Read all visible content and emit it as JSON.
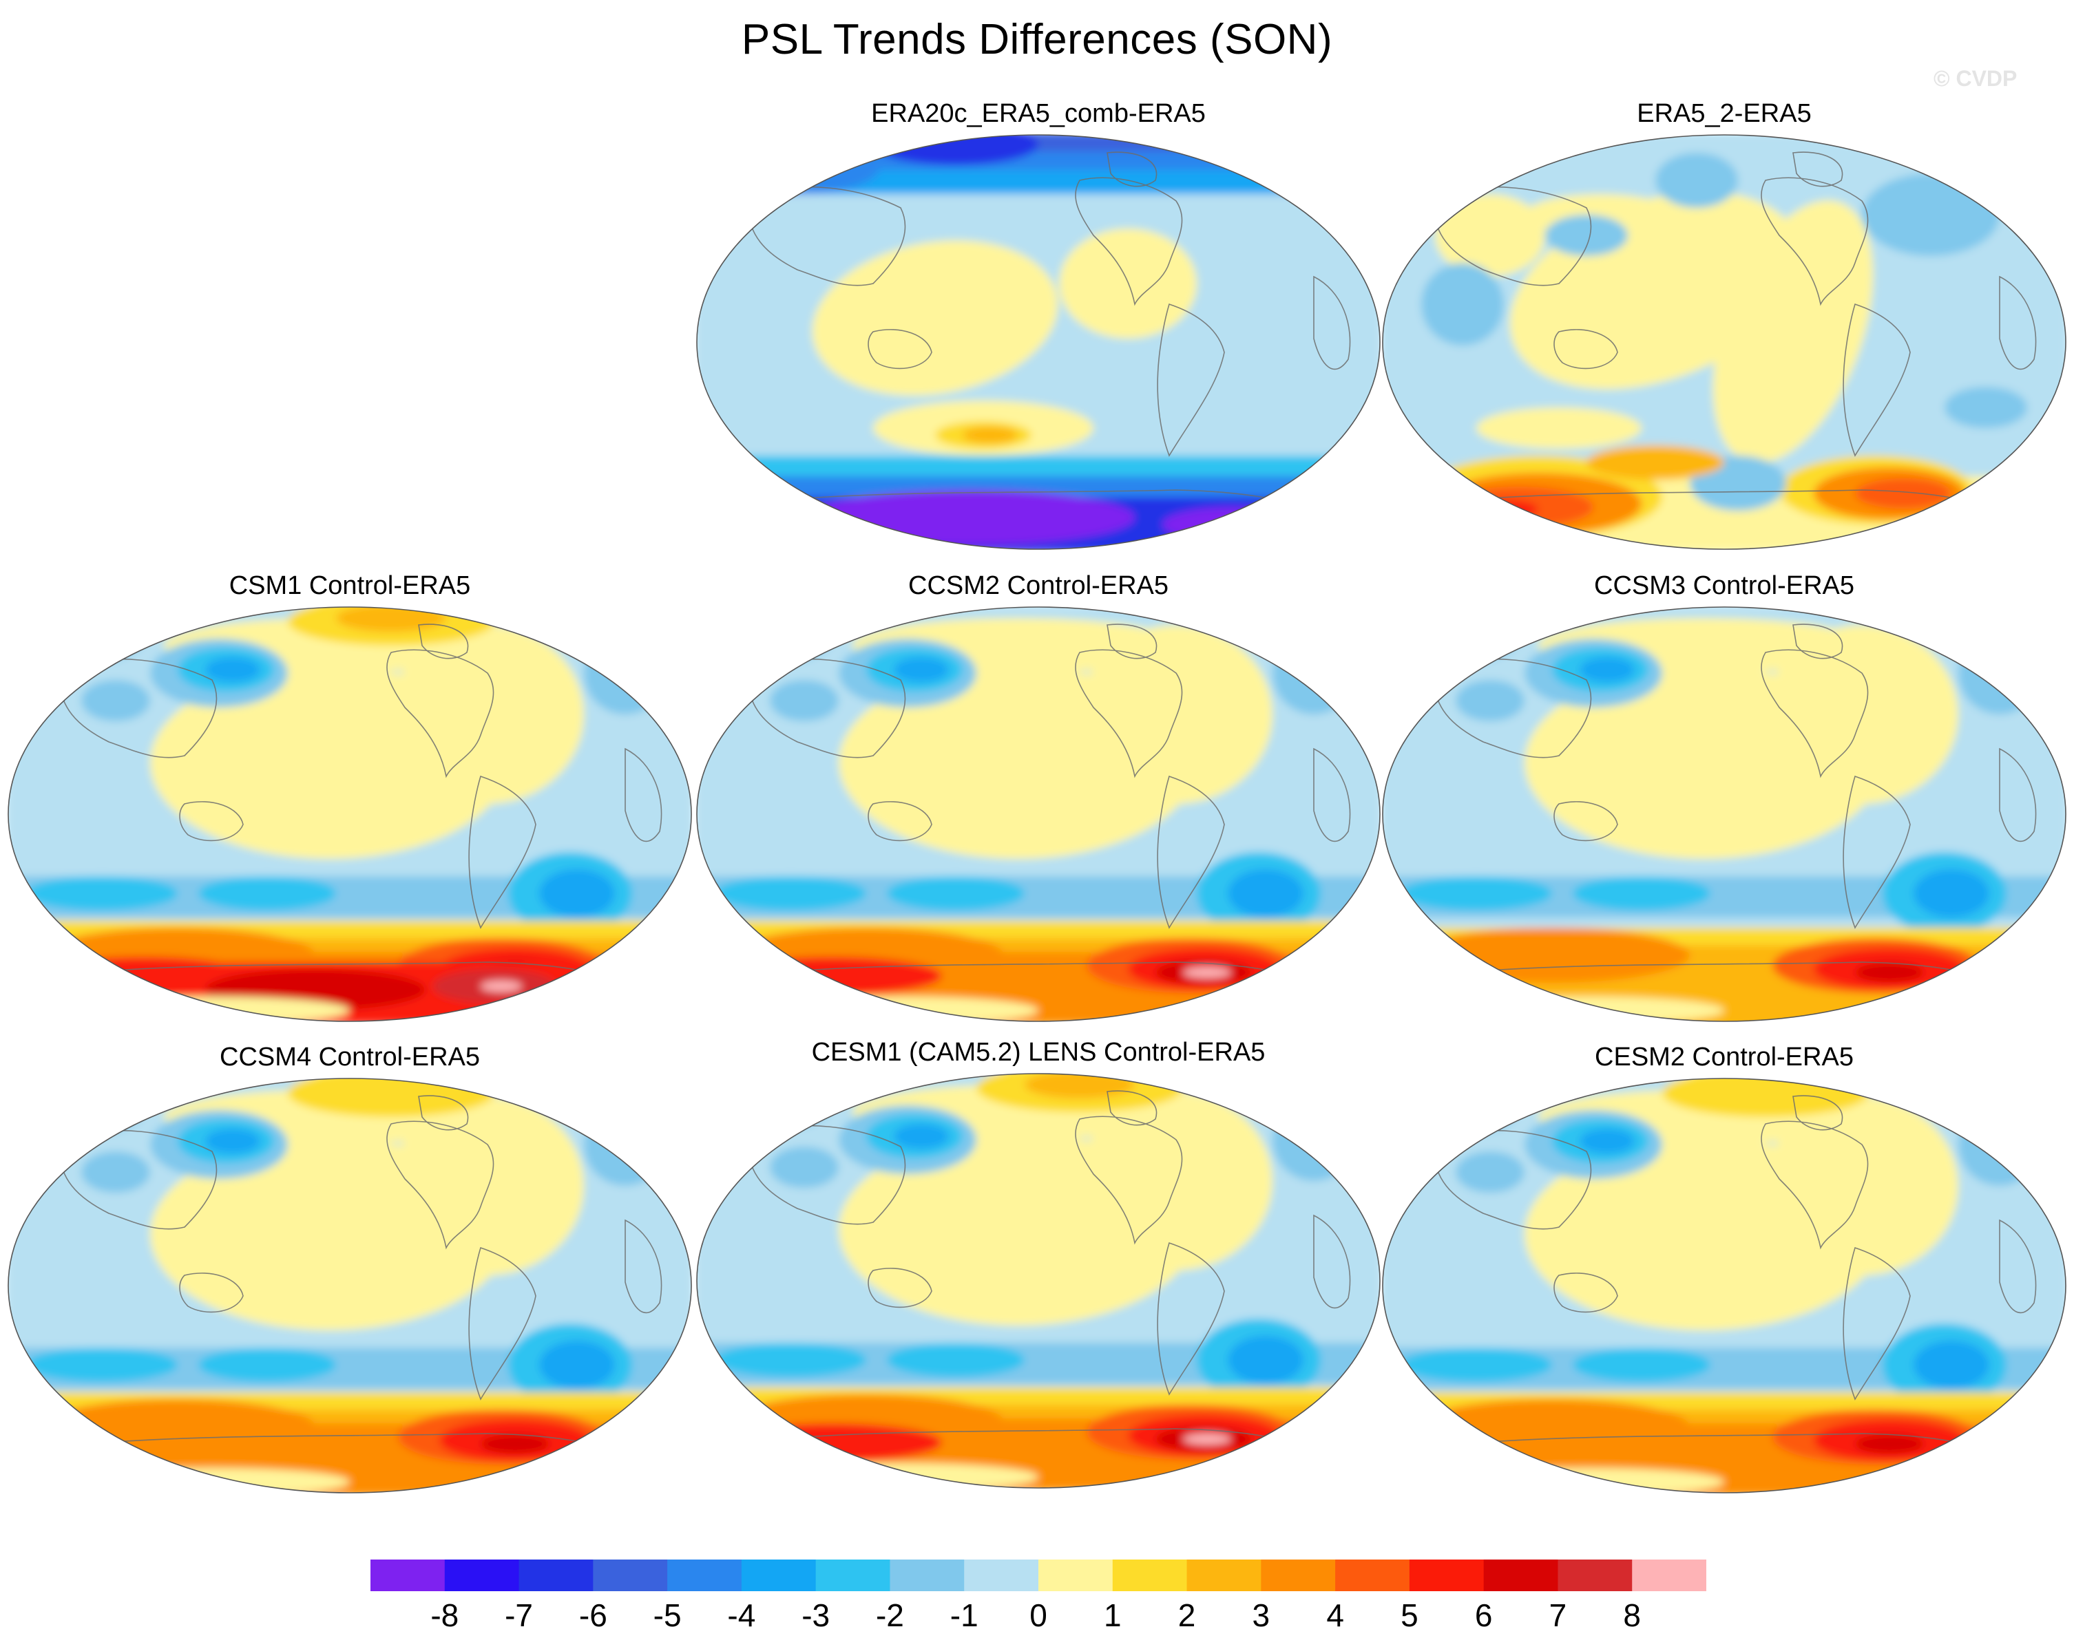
{
  "title": "PSL Trends Differences (SON)",
  "watermark": "© CVDP",
  "panels": [
    {
      "title": "ERA20c_ERA5_comb-ERA5",
      "style": "era20c"
    },
    {
      "title": "ERA5_2-ERA5",
      "style": "era5_2"
    },
    {
      "title": "CSM1 Control-ERA5",
      "style": "csm1"
    },
    {
      "title": "CCSM2 Control-ERA5",
      "style": "ccsm2"
    },
    {
      "title": "CCSM3 Control-ERA5",
      "style": "ccsm3"
    },
    {
      "title": "CCSM4 Control-ERA5",
      "style": "ccsm4"
    },
    {
      "title": "CESM1 (CAM5.2) LENS Control-ERA5",
      "style": "cesm1"
    },
    {
      "title": "CESM2 Control-ERA5",
      "style": "cesm2"
    }
  ],
  "colorbar": {
    "labels": [
      "-8",
      "-7",
      "-6",
      "-5",
      "-4",
      "-3",
      "-2",
      "-1",
      "0",
      "1",
      "2",
      "3",
      "4",
      "5",
      "6",
      "7",
      "8"
    ],
    "colors": [
      "#7e22f0",
      "#2a10f5",
      "#2233e6",
      "#3a62dd",
      "#2a86ee",
      "#13a6f4",
      "#2ec3f1",
      "#80c8ec",
      "#b7e0f2",
      "#fff59b",
      "#fddc2a",
      "#fdb60f",
      "#fd8c03",
      "#fd5a0d",
      "#fb1b08",
      "#d80404",
      "#d62a2d",
      "#feb3b6"
    ]
  }
}
